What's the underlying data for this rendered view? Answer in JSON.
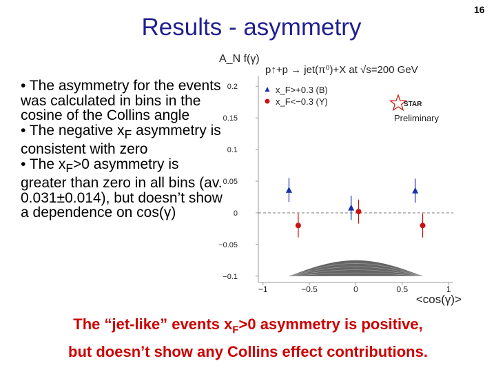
{
  "slide": {
    "title": "Results - asymmetry",
    "page_number": "16",
    "bullets": [
      {
        "parts": [
          "• The asymmetry for the events was calculated in bins in the cosine of the Collins angle"
        ]
      },
      {
        "parts": [
          "• The negative x",
          "F",
          " asymmetry is consistent with zero"
        ]
      },
      {
        "parts": [
          "• The x",
          "F",
          ">0 asymmetry is greater than zero in all bins (av. 0.031±0.014), but doesn’t show a dependence on cos(γ)"
        ]
      }
    ],
    "conclusion": {
      "line1_a": "The “jet-like” events x",
      "line1_sub": "F",
      "line1_b": ">0 asymmetry is positive,",
      "line2": "but doesn’t show any Collins effect contributions."
    }
  },
  "chart_data": {
    "type": "scatter",
    "title": "p↑+p → jet(π⁰)+X at √s=200 GeV",
    "ylabel": "A_N f(γ)",
    "xlabel": "<cos(γ)>",
    "xlim": [
      -1.05,
      1.05
    ],
    "ylim": [
      -0.11,
      0.21
    ],
    "xticks": [
      -1,
      -0.5,
      0,
      0.5,
      1
    ],
    "xtick_labels": [
      "−1",
      "−0.5",
      "0",
      "0.5",
      "1"
    ],
    "yticks": [
      -0.1,
      -0.05,
      0,
      0.05,
      0.1,
      0.15,
      0.2
    ],
    "ytick_labels": [
      "−0.1",
      "−0.05",
      "0",
      "0.05",
      "0.1",
      "0.15",
      "0.2"
    ],
    "reference_line_y": 0,
    "legend_position": "top-left",
    "series": [
      {
        "name": "x_F>+0.3 (B)",
        "legend_label": "x_F>+0.3 (B)",
        "marker": "triangle",
        "color": "#1a2ea8",
        "x": [
          -0.72,
          -0.05,
          0.64
        ],
        "y": [
          0.036,
          0.008,
          0.035
        ],
        "err": [
          0.019,
          0.019,
          0.019
        ]
      },
      {
        "name": "x_F<−0.3 (Y)",
        "legend_label": "x_F<−0.3 (Y)",
        "marker": "circle",
        "color": "#cc1111",
        "x": [
          -0.62,
          0.03,
          0.72
        ],
        "y": [
          -0.02,
          0.002,
          -0.02
        ],
        "err": [
          0.019,
          0.019,
          0.019
        ]
      }
    ],
    "annotations": {
      "logo_text": "STAR",
      "preliminary": "Preliminary"
    }
  }
}
